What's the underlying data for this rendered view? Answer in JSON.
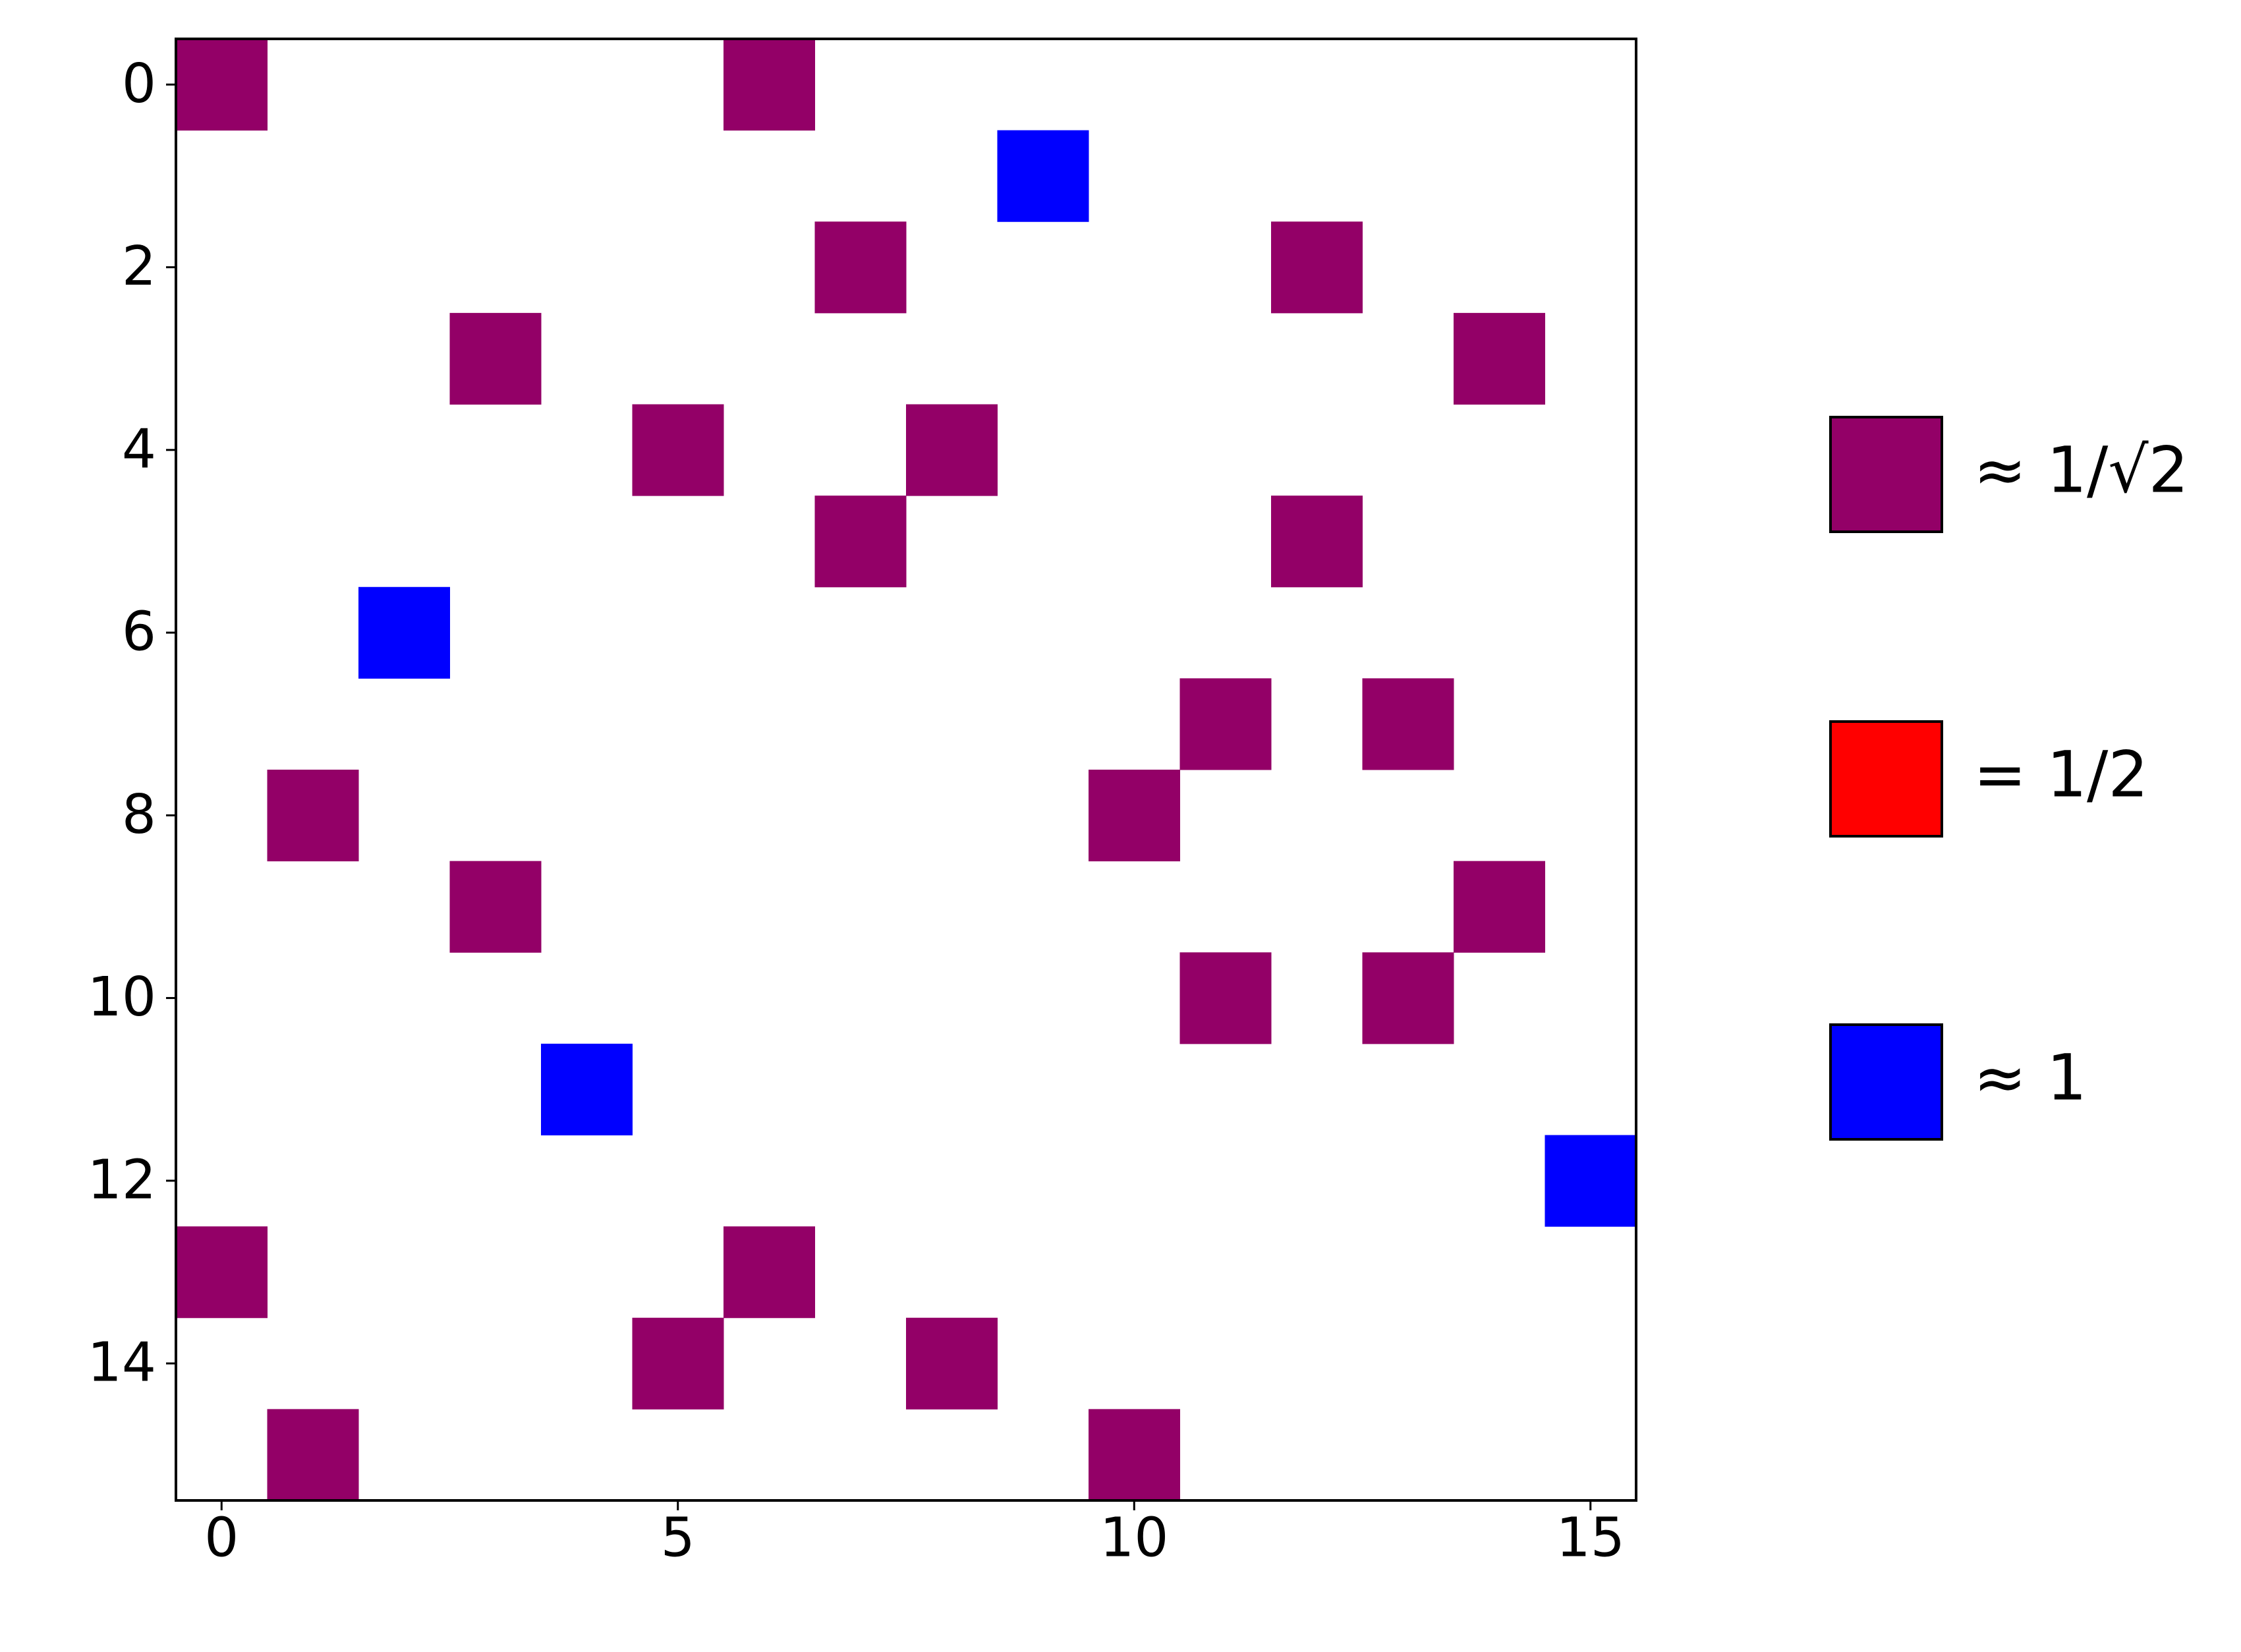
{
  "chart_data": {
    "type": "matrix",
    "xlim": [
      -0.5,
      15.5
    ],
    "ylim": [
      15.5,
      -0.5
    ],
    "xticks": [
      0,
      5,
      10,
      15
    ],
    "yticks": [
      0,
      2,
      4,
      6,
      8,
      10,
      12,
      14
    ],
    "series": [
      {
        "name": "≈ 1/√2",
        "color": "#930067",
        "x": [
          0,
          6,
          7,
          12,
          3,
          14,
          5,
          8,
          7,
          12,
          11,
          13,
          1,
          10,
          3,
          14,
          11,
          13,
          0,
          6,
          5,
          8,
          1,
          10
        ],
        "y": [
          0,
          0,
          2,
          2,
          3,
          3,
          4,
          4,
          5,
          5,
          7,
          7,
          8,
          8,
          9,
          9,
          10,
          10,
          13,
          13,
          14,
          14,
          15,
          15
        ]
      },
      {
        "name": "= 1/2",
        "color": "#ff0000",
        "x": [],
        "y": []
      },
      {
        "name": "≈ 1",
        "color": "#0000ff",
        "x": [
          9,
          2,
          4,
          15
        ],
        "y": [
          1,
          6,
          11,
          12
        ]
      }
    ]
  }
}
